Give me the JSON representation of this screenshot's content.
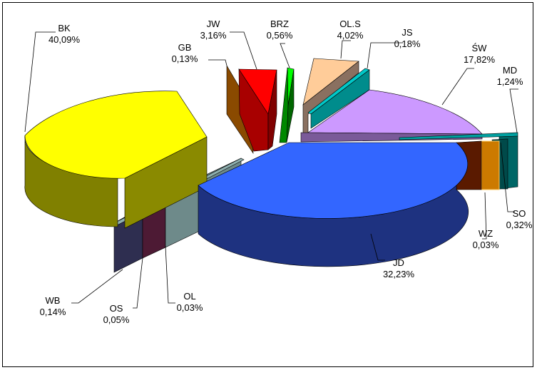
{
  "chart_data": {
    "type": "pie",
    "style": "3d-exploded",
    "legend": "none",
    "slices": [
      {
        "name": "BK",
        "value_label": "40,09%",
        "value": 40.09,
        "color": "#ffff00"
      },
      {
        "name": "GB",
        "value_label": "0,13%",
        "value": 0.13,
        "color": "#a05a00"
      },
      {
        "name": "JW",
        "value_label": "3,16%",
        "value": 3.16,
        "color": "#ff0000"
      },
      {
        "name": "BRZ",
        "value_label": "0,56%",
        "value": 0.56,
        "color": "#00d000"
      },
      {
        "name": "OL.S",
        "value_label": "4,02%",
        "value": 4.02,
        "color": "#ffcc99"
      },
      {
        "name": "JS",
        "value_label": "0,18%",
        "value": 0.18,
        "color": "#00a0a0"
      },
      {
        "name": "ŚW",
        "value_label": "17,82%",
        "value": 17.82,
        "color": "#cc99ff"
      },
      {
        "name": "MD",
        "value_label": "1,24%",
        "value": 1.24,
        "color": "#009090"
      },
      {
        "name": "SO",
        "value_label": "0,32%",
        "value": 0.32,
        "color": "#006060"
      },
      {
        "name": "WZ",
        "value_label": "0,03%",
        "value": 0.03,
        "color": "#cc7a00"
      },
      {
        "name": "JD",
        "value_label": "32,23%",
        "value": 32.23,
        "color": "#3366ff"
      },
      {
        "name": "OL",
        "value_label": "0,03%",
        "value": 0.03,
        "color": "#8fb0b0"
      },
      {
        "name": "OS",
        "value_label": "0,05%",
        "value": 0.05,
        "color": "#6b2a4a"
      },
      {
        "name": "WB",
        "value_label": "0,14%",
        "value": 0.14,
        "color": "#4a4a70"
      }
    ]
  }
}
